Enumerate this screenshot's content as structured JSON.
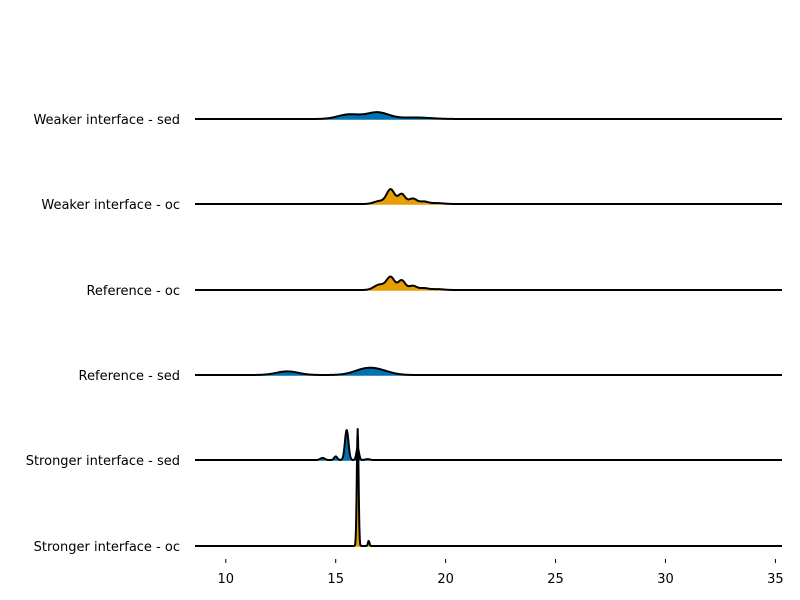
{
  "chart_data": {
    "type": "area",
    "subtype": "ridgeline",
    "title": "",
    "xlabel": "",
    "ylabel": "",
    "xlim": [
      8.6,
      35.3
    ],
    "x_ticks": [
      "10",
      "15",
      "20",
      "25",
      "30",
      "35"
    ],
    "grid": false,
    "legend": "none",
    "series": [
      {
        "name": "Weaker interface - sed",
        "color": "#0072b2",
        "peaks": [
          [
            15.6,
            0.15,
            0.5
          ],
          [
            16.9,
            0.22,
            0.5
          ],
          [
            18.6,
            0.05,
            0.7
          ]
        ]
      },
      {
        "name": "Weaker interface - oc",
        "color": "#e69f00",
        "peaks": [
          [
            17.0,
            0.1,
            0.25
          ],
          [
            17.5,
            0.48,
            0.18
          ],
          [
            18.0,
            0.33,
            0.16
          ],
          [
            18.5,
            0.18,
            0.18
          ],
          [
            19.0,
            0.08,
            0.2
          ],
          [
            19.6,
            0.03,
            0.3
          ]
        ]
      },
      {
        "name": "Reference - oc",
        "color": "#e69f00",
        "peaks": [
          [
            17.0,
            0.18,
            0.25
          ],
          [
            17.5,
            0.42,
            0.18
          ],
          [
            18.0,
            0.32,
            0.16
          ],
          [
            18.5,
            0.14,
            0.18
          ],
          [
            19.0,
            0.06,
            0.2
          ],
          [
            19.6,
            0.03,
            0.3
          ]
        ]
      },
      {
        "name": "Reference - sed",
        "color": "#0072b2",
        "peaks": [
          [
            12.8,
            0.12,
            0.5
          ],
          [
            16.4,
            0.2,
            0.55
          ],
          [
            17.1,
            0.09,
            0.5
          ]
        ]
      },
      {
        "name": "Stronger interface - sed",
        "color": "#0072b2",
        "peaks": [
          [
            14.4,
            0.07,
            0.1
          ],
          [
            15.0,
            0.12,
            0.07
          ],
          [
            15.5,
            1.0,
            0.08
          ],
          [
            16.0,
            0.4,
            0.06
          ],
          [
            16.45,
            0.03,
            0.1
          ]
        ]
      },
      {
        "name": "Stronger interface - oc",
        "color": "#e69f00",
        "peaks": [
          [
            16.0,
            3.9,
            0.04
          ],
          [
            16.5,
            0.17,
            0.035
          ]
        ]
      }
    ]
  }
}
